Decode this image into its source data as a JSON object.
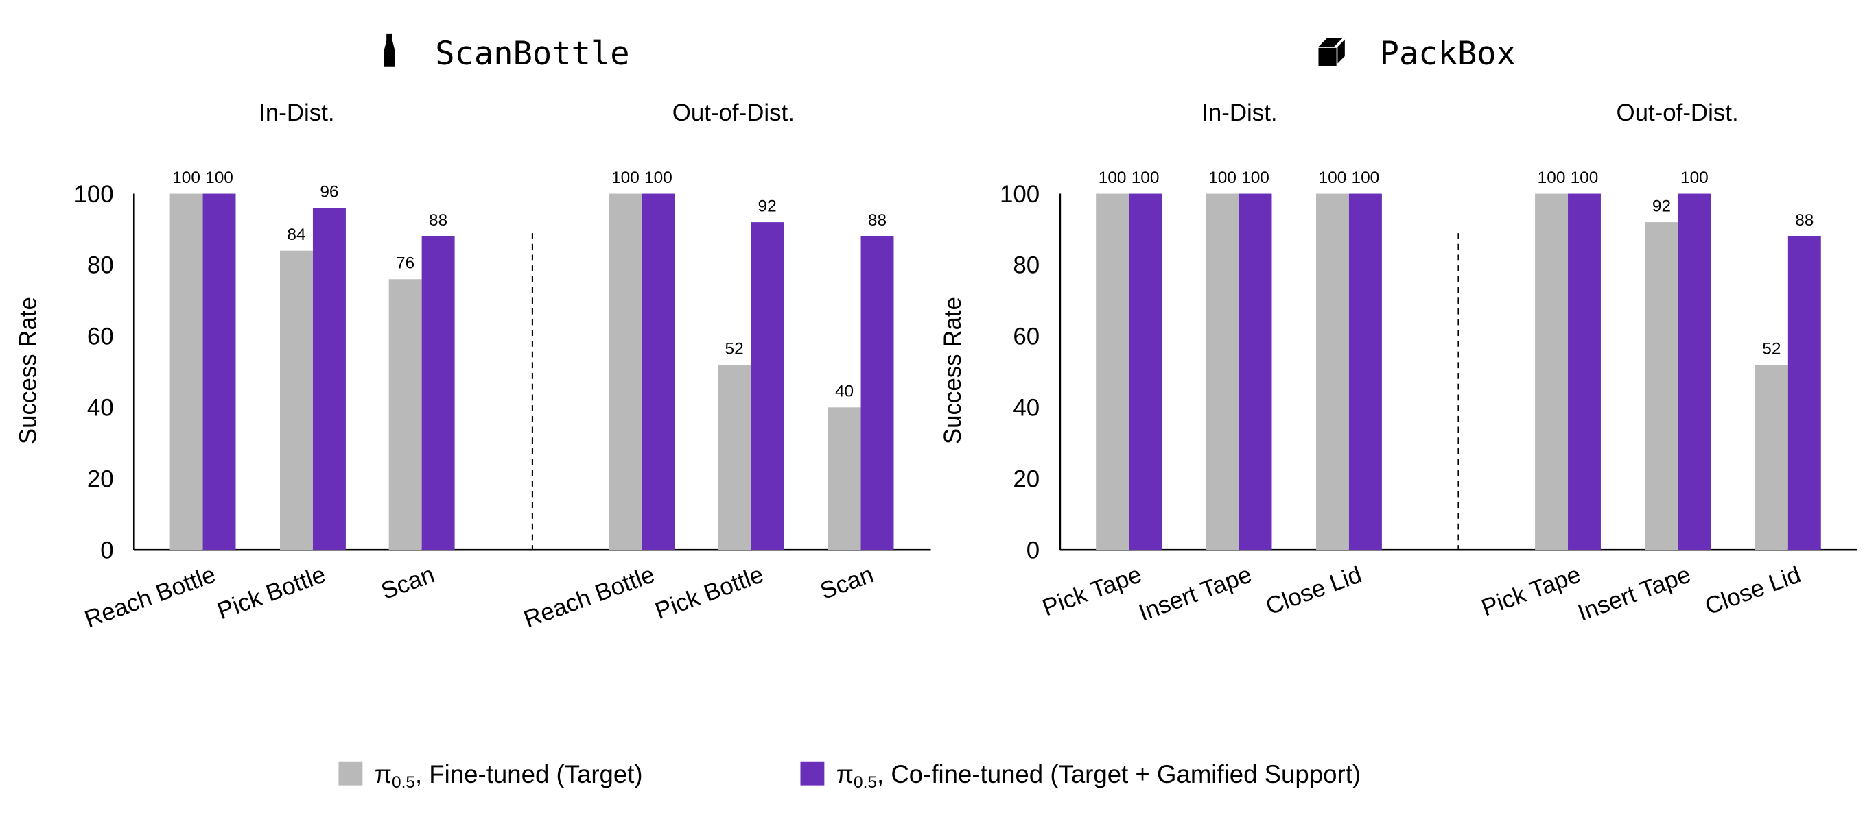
{
  "colors": {
    "target": "#b9b9b9",
    "cofinetuned": "#6a2fb8",
    "axis": "#000000"
  },
  "legend": [
    {
      "symbol": "π",
      "sub": "0.5",
      "label": ", Fine-tuned (Target)",
      "color_key": "target"
    },
    {
      "symbol": "π",
      "sub": "0.5",
      "label": ", Co-fine-tuned (Target + Gamified Support)",
      "color_key": "cofinetuned"
    }
  ],
  "chart_data": [
    {
      "type": "bar",
      "title": "ScanBottle",
      "icon": "bottle-icon",
      "ylabel": "Success Rate",
      "ylim": [
        0,
        100
      ],
      "yticks": [
        0,
        20,
        40,
        60,
        80,
        100
      ],
      "series_names": [
        "π0.5, Fine-tuned (Target)",
        "π0.5, Co-fine-tuned (Target + Gamified Support)"
      ],
      "panels": [
        {
          "subtitle": "In-Dist.",
          "categories": [
            "Reach Bottle",
            "Pick Bottle",
            "Scan"
          ],
          "series": [
            {
              "name": "target",
              "values": [
                100,
                84,
                76
              ]
            },
            {
              "name": "cofinetuned",
              "values": [
                100,
                96,
                88
              ]
            }
          ]
        },
        {
          "subtitle": "Out-of-Dist.",
          "categories": [
            "Reach Bottle",
            "Pick Bottle",
            "Scan"
          ],
          "series": [
            {
              "name": "target",
              "values": [
                100,
                52,
                40
              ]
            },
            {
              "name": "cofinetuned",
              "values": [
                100,
                92,
                88
              ]
            }
          ]
        }
      ]
    },
    {
      "type": "bar",
      "title": "PackBox",
      "icon": "box-icon",
      "ylabel": "Success Rate",
      "ylim": [
        0,
        100
      ],
      "yticks": [
        0,
        20,
        40,
        60,
        80,
        100
      ],
      "series_names": [
        "π0.5, Fine-tuned (Target)",
        "π0.5, Co-fine-tuned (Target + Gamified Support)"
      ],
      "panels": [
        {
          "subtitle": "In-Dist.",
          "categories": [
            "Pick Tape",
            "Insert Tape",
            "Close Lid"
          ],
          "series": [
            {
              "name": "target",
              "values": [
                100,
                100,
                100
              ]
            },
            {
              "name": "cofinetuned",
              "values": [
                100,
                100,
                100
              ]
            }
          ]
        },
        {
          "subtitle": "Out-of-Dist.",
          "categories": [
            "Pick Tape",
            "Insert Tape",
            "Close Lid"
          ],
          "series": [
            {
              "name": "target",
              "values": [
                100,
                92,
                52
              ]
            },
            {
              "name": "cofinetuned",
              "values": [
                100,
                100,
                88
              ]
            }
          ]
        }
      ]
    }
  ]
}
